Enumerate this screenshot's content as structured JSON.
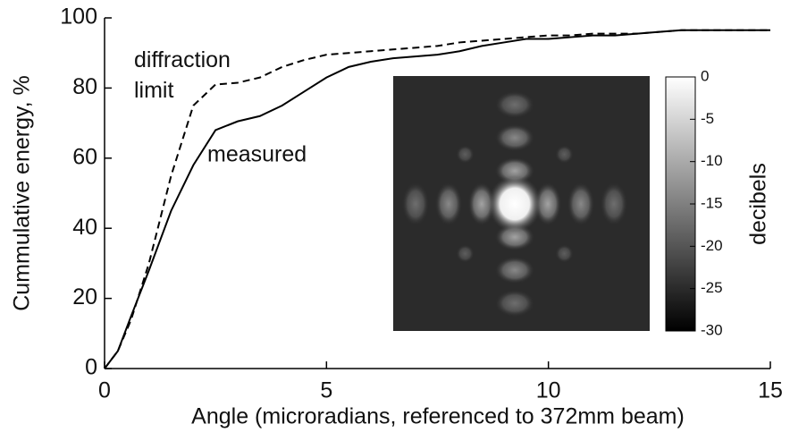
{
  "chart_data": {
    "type": "line",
    "xlabel": "Angle (microradians, referenced to 372mm beam)",
    "ylabel": "Cummulative energy, %",
    "x": [
      0,
      0.3,
      0.6,
      1,
      1.5,
      2,
      2.5,
      3,
      3.5,
      4,
      4.5,
      5,
      5.5,
      6,
      6.5,
      7,
      7.5,
      8,
      8.5,
      9,
      9.5,
      10,
      10.5,
      11,
      11.5,
      12,
      12.5,
      13,
      14,
      15
    ],
    "series": [
      {
        "name": "measured",
        "color": "#000000",
        "dash": false,
        "values": [
          0,
          5,
          15,
          28,
          45,
          58,
          68,
          70.5,
          72,
          75,
          79,
          83,
          86,
          87.5,
          88.5,
          89,
          89.5,
          90.5,
          92,
          93,
          94,
          94,
          94.5,
          95,
          95,
          95.5,
          96,
          96.5,
          96.5,
          96.5
        ]
      },
      {
        "name": "diffraction limit",
        "color": "#000000",
        "dash": true,
        "values": [
          0,
          5,
          14,
          30,
          55,
          75,
          81,
          81.5,
          83,
          86,
          88,
          89.5,
          90,
          90.5,
          91,
          91.5,
          92,
          93,
          93.5,
          94,
          94.5,
          95,
          95,
          95.5,
          95.5,
          95.5,
          96,
          96.5,
          96.5,
          96.5
        ]
      }
    ],
    "xlim": [
      0,
      15
    ],
    "xticks": [
      0,
      5,
      10,
      15
    ],
    "ylim": [
      0,
      100
    ],
    "yticks": [
      0,
      20,
      40,
      60,
      80,
      100
    ],
    "colorbar": {
      "label": "decibels",
      "lim": [
        -30,
        0
      ],
      "ticks": [
        0,
        -5,
        -10,
        -15,
        -20,
        -25,
        -30
      ]
    }
  }
}
